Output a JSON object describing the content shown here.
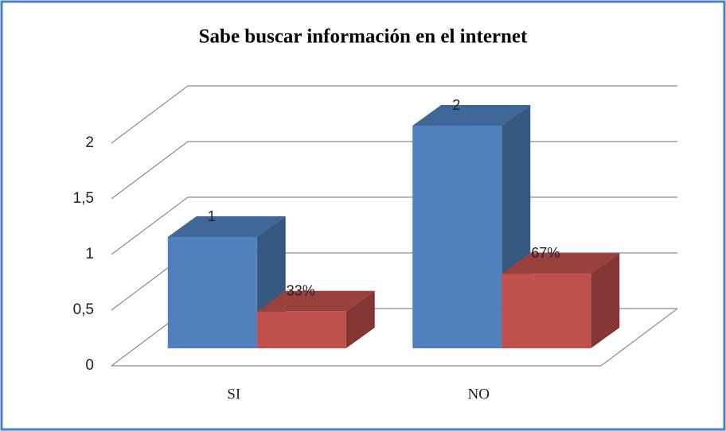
{
  "chart_data": {
    "type": "bar3d",
    "title": "Sabe buscar información en el internet",
    "categories": [
      "SI",
      "NO"
    ],
    "series": [
      {
        "color": "#4f81bd",
        "values": [
          1,
          2
        ]
      },
      {
        "color": "#c0504d",
        "values": [
          0.33,
          0.67
        ],
        "value_labels": [
          "33%",
          "67%"
        ]
      }
    ],
    "ylim": [
      0,
      2
    ],
    "yticks": [
      0,
      {
        "value": 0.5,
        "label": "0,5"
      },
      1,
      {
        "value": 1.5,
        "label": "1,5"
      },
      2
    ],
    "grid": true
  }
}
